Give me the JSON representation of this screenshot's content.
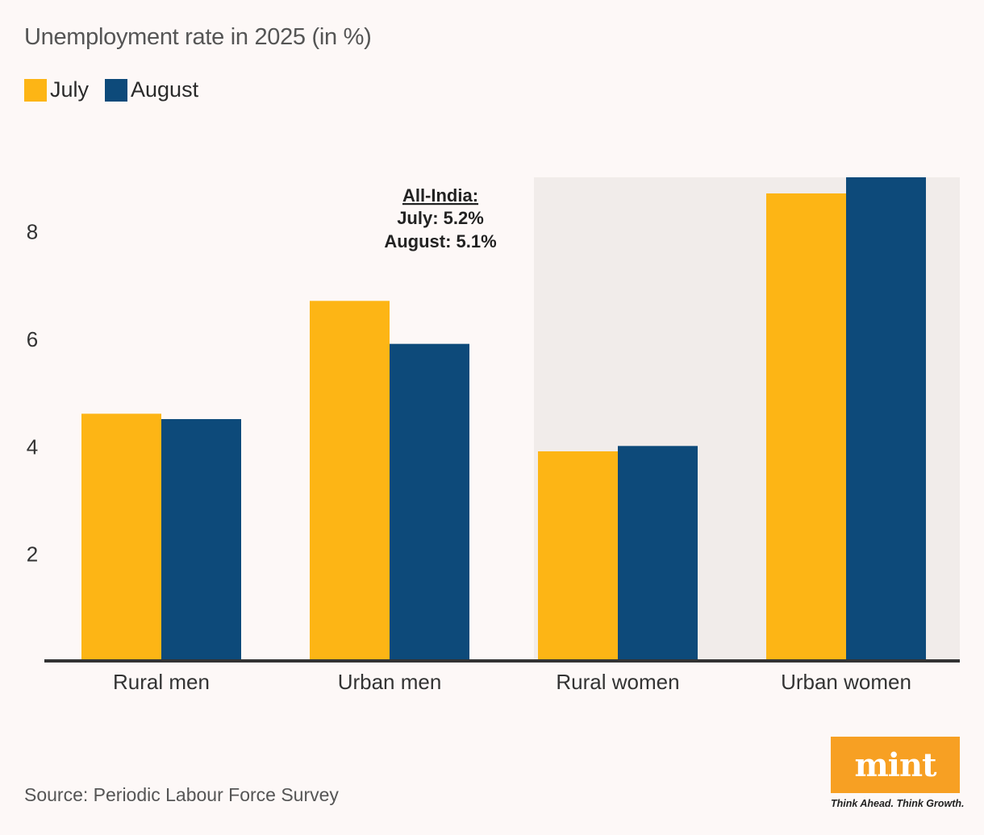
{
  "title": "Unemployment rate in 2025 (in %)",
  "legend": [
    {
      "label": "July",
      "color": "#fdb515"
    },
    {
      "label": "August",
      "color": "#0d4a7a"
    }
  ],
  "annotation": {
    "heading": "All-India:",
    "line1": "July: 5.2%",
    "line2": "August: 5.1%"
  },
  "source": "Source: Periodic Labour Force Survey",
  "logo": {
    "text": "mint",
    "tagline": "Think Ahead. Think Growth.",
    "color": "#f7a023"
  },
  "colors": {
    "background": "#fdf8f7",
    "highlight_band": "#f1ecea",
    "axis": "#333333"
  },
  "chart_data": {
    "type": "bar",
    "title": "Unemployment rate in 2025 (in %)",
    "xlabel": "",
    "ylabel": "",
    "categories": [
      "Rural men",
      "Urban men",
      "Rural women",
      "Urban women"
    ],
    "series": [
      {
        "name": "July",
        "values": [
          4.6,
          6.7,
          3.9,
          8.7
        ],
        "color": "#fdb515"
      },
      {
        "name": "August",
        "values": [
          4.5,
          5.9,
          4.0,
          9.0
        ],
        "color": "#0d4a7a"
      }
    ],
    "yticks": [
      2,
      4,
      6,
      8
    ],
    "ylim": [
      0,
      9
    ],
    "grid": false,
    "legend_position": "top-left",
    "highlighted_categories": [
      "Rural women",
      "Urban women"
    ],
    "annotations": [
      "All-India:",
      "July: 5.2%",
      "August: 5.1%"
    ]
  }
}
